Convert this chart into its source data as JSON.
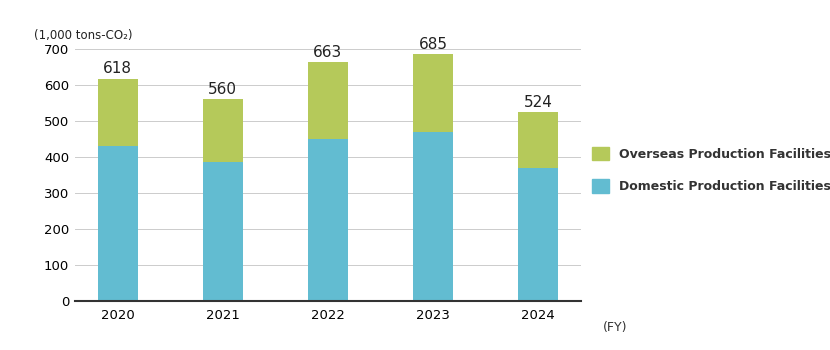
{
  "years": [
    "2020",
    "2021",
    "2022",
    "2023",
    "2024"
  ],
  "domestic": [
    430,
    385,
    450,
    470,
    370
  ],
  "overseas": [
    188,
    175,
    213,
    215,
    154
  ],
  "totals": [
    618,
    560,
    663,
    685,
    524
  ],
  "domestic_color": "#62bcd1",
  "overseas_color": "#b5c95a",
  "ylabel": "(1,000 tons-CO₂)",
  "xlabel": "(FY)",
  "ylim": [
    0,
    700
  ],
  "yticks": [
    0,
    100,
    200,
    300,
    400,
    500,
    600,
    700
  ],
  "legend_overseas": "Overseas Production Facilities",
  "legend_domestic": "Domestic Production Facilities",
  "bar_width": 0.38,
  "figure_width": 8.3,
  "figure_height": 3.5,
  "label_fontsize": 11,
  "tick_fontsize": 9.5,
  "background_color": "#ffffff"
}
